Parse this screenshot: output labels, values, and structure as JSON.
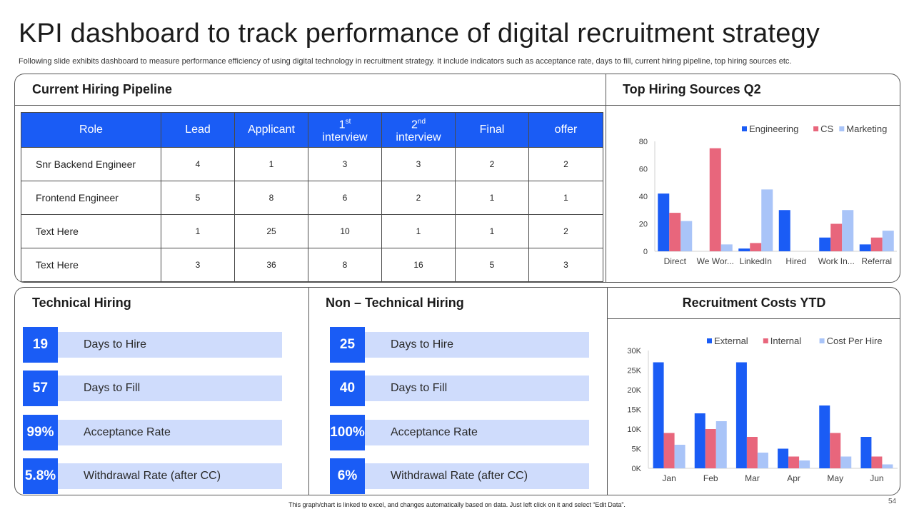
{
  "title": "KPI dashboard to track performance of digital recruitment strategy",
  "subtitle": "Following slide exhibits dashboard to measure performance efficiency of using digital technology in recruitment strategy. It include indicators such as acceptance rate, days to fill, current hiring pipeline, top hiring sources etc.",
  "pipeline": {
    "heading": "Current Hiring Pipeline",
    "headers": {
      "role": "Role",
      "lead": "Lead",
      "applicant": "Applicant",
      "first_num": "1",
      "first_sup": "st",
      "first_text": "interview",
      "second_num": "2",
      "second_sup": "nd",
      "second_text": "interview",
      "final": "Final",
      "offer": "offer"
    },
    "rows": [
      {
        "role": "Snr Backend Engineer",
        "values": [
          "4",
          "1",
          "3",
          "3",
          "2",
          "2"
        ]
      },
      {
        "role": "Frontend Engineer",
        "values": [
          "5",
          "8",
          "6",
          "2",
          "1",
          "1"
        ]
      },
      {
        "role": "Text Here",
        "values": [
          "1",
          "25",
          "10",
          "1",
          "1",
          "2"
        ]
      },
      {
        "role": "Text Here",
        "values": [
          "3",
          "36",
          "8",
          "16",
          "5",
          "3"
        ]
      }
    ]
  },
  "technical": {
    "heading": "Technical Hiring",
    "kpis": [
      {
        "value": "19",
        "label": "Days to Hire"
      },
      {
        "value": "57",
        "label": "Days to Fill"
      },
      {
        "value": "99%",
        "label": "Acceptance Rate"
      },
      {
        "value": "5.8%",
        "label": "Withdrawal Rate (after CC)"
      }
    ]
  },
  "non_technical": {
    "heading": "Non – Technical Hiring",
    "kpis": [
      {
        "value": "25",
        "label": "Days to Hire"
      },
      {
        "value": "40",
        "label": "Days to Fill"
      },
      {
        "value": "100%",
        "label": "Acceptance Rate"
      },
      {
        "value": "6%",
        "label": "Withdrawal Rate (after CC)"
      }
    ]
  },
  "colors": {
    "series1": "#1a5cf5",
    "series2": "#e8667c",
    "series3": "#a9c4f8"
  },
  "chart_data": [
    {
      "type": "bar",
      "title": "Top Hiring Sources Q2",
      "categories": [
        "Direct",
        "We Wor...",
        "LinkedIn",
        "Hired",
        "Work In...",
        "Referral"
      ],
      "series": [
        {
          "name": "Engineering",
          "values": [
            42,
            0,
            2,
            30,
            10,
            5
          ]
        },
        {
          "name": "CS",
          "values": [
            28,
            75,
            6,
            0,
            20,
            10
          ]
        },
        {
          "name": "Marketing",
          "values": [
            22,
            5,
            45,
            0,
            30,
            15
          ]
        }
      ],
      "yticks": [
        "0",
        "20",
        "40",
        "60",
        "80"
      ],
      "ylim": [
        0,
        80
      ],
      "legend": "top"
    },
    {
      "type": "bar",
      "title": "Recruitment Costs YTD",
      "categories": [
        "Jan",
        "Feb",
        "Mar",
        "Apr",
        "May",
        "Jun"
      ],
      "series": [
        {
          "name": "External",
          "values": [
            27000,
            14000,
            27000,
            5000,
            16000,
            8000
          ]
        },
        {
          "name": "Internal",
          "values": [
            9000,
            10000,
            8000,
            3000,
            9000,
            3000
          ]
        },
        {
          "name": "Cost Per Hire",
          "values": [
            6000,
            12000,
            4000,
            2000,
            3000,
            1000
          ]
        }
      ],
      "yticks": [
        "0K",
        "5K",
        "10K",
        "15K",
        "20K",
        "25K",
        "30K"
      ],
      "ylim": [
        0,
        30000
      ],
      "legend": "top"
    }
  ],
  "footer": "This graph/chart is linked to excel, and changes automatically based on data. Just left click on it and select “Edit Data”.",
  "page_number": "54"
}
